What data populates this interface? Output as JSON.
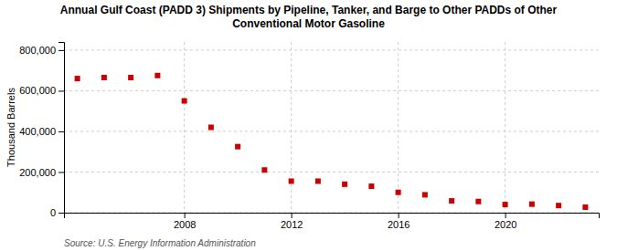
{
  "chart_data": {
    "type": "scatter",
    "title": "Annual Gulf Coast (PADD 3) Shipments by Pipeline, Tanker, and Barge to Other PADDs of Other\nConventional Motor Gasoline",
    "ylabel": "Thousand Barrels",
    "annotations": [
      "Source: U.S. Energy Information Administration"
    ],
    "x": [
      2004,
      2005,
      2006,
      2007,
      2008,
      2009,
      2010,
      2011,
      2012,
      2013,
      2014,
      2015,
      2016,
      2017,
      2018,
      2019,
      2020,
      2021,
      2022,
      2023
    ],
    "values": [
      660000,
      665000,
      665000,
      675000,
      550000,
      420000,
      325000,
      210000,
      155000,
      155000,
      140000,
      130000,
      100000,
      88000,
      58000,
      55000,
      40000,
      42000,
      35000,
      27000
    ],
    "color": "#cc0000",
    "marker": "square",
    "xlim": [
      2003.5,
      2023.5
    ],
    "xticks": [
      2008,
      2012,
      2016,
      2020
    ],
    "ylim": [
      0,
      840000
    ],
    "yticks": [
      0,
      {
        "value": 200000,
        "label": "200,000"
      },
      {
        "value": 400000,
        "label": "400,000"
      },
      {
        "value": 600000,
        "label": "600,000"
      },
      {
        "value": 800000,
        "label": "800,000"
      }
    ],
    "grid": true
  }
}
